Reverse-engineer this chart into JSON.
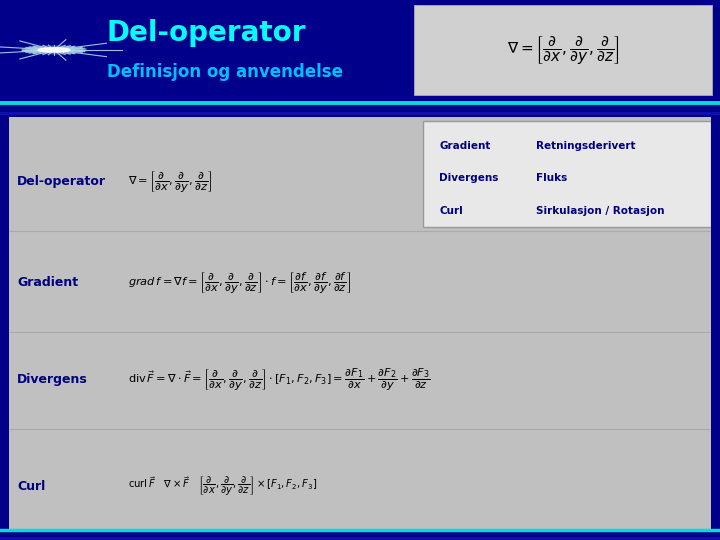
{
  "title": "Del-operator",
  "subtitle": "Definisjon og anvendelse",
  "header_bg": "#00008B",
  "title_color": "#00FFFF",
  "subtitle_color": "#00BFFF",
  "body_bg": "#C0C0C0",
  "separator_color1": "#00DDDD",
  "separator_color2": "#1111AA",
  "label_color": "#000080",
  "row_labels": [
    "Del-operator",
    "Gradient",
    "Divergens",
    "Curl"
  ],
  "info_col1": [
    "Gradient",
    "Divergens",
    "Curl"
  ],
  "info_col2": [
    "Retningsderivert",
    "Fluks",
    "Sirkulasjon / Rotasjon"
  ],
  "header_bg_dark": "#00003A",
  "info_box_bg": "#E8E8E8",
  "body_divider": "#AAAAAA",
  "formula_box_bg": "#D0D0D0"
}
